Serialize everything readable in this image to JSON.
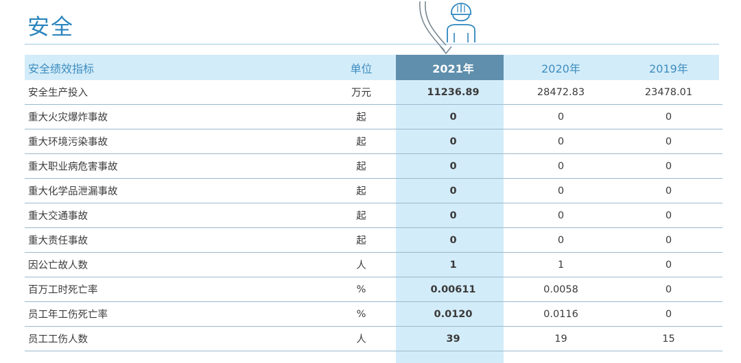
{
  "title": "安全",
  "table": {
    "headers": {
      "indicator": "安全绩效指标",
      "unit": "单位",
      "y2021": "2021年",
      "y2020": "2020年",
      "y2019": "2019年"
    },
    "rows": [
      {
        "name": "安全生产投入",
        "unit": "万元",
        "y2021": "11236.89",
        "y2020": "28472.83",
        "y2019": "23478.01"
      },
      {
        "name": "重大火灾爆炸事故",
        "unit": "起",
        "y2021": "0",
        "y2020": "0",
        "y2019": "0"
      },
      {
        "name": "重大环境污染事故",
        "unit": "起",
        "y2021": "0",
        "y2020": "0",
        "y2019": "0"
      },
      {
        "name": "重大职业病危害事故",
        "unit": "起",
        "y2021": "0",
        "y2020": "0",
        "y2019": "0"
      },
      {
        "name": "重大化学品泄漏事故",
        "unit": "起",
        "y2021": "0",
        "y2020": "0",
        "y2019": "0"
      },
      {
        "name": "重大交通事故",
        "unit": "起",
        "y2021": "0",
        "y2020": "0",
        "y2019": "0"
      },
      {
        "name": "重大责任事故",
        "unit": "起",
        "y2021": "0",
        "y2020": "0",
        "y2019": "0"
      },
      {
        "name": "因公亡故人数",
        "unit": "人",
        "y2021": "1",
        "y2020": "1",
        "y2019": "0"
      },
      {
        "name": "百万工时死亡率",
        "unit": "%",
        "y2021": "0.00611",
        "y2020": "0.0058",
        "y2019": "0"
      },
      {
        "name": "员工年工伤死亡率",
        "unit": "%",
        "y2021": "0.0120",
        "y2020": "0.0116",
        "y2019": "0"
      },
      {
        "name": "员工工伤人数",
        "unit": "人",
        "y2021": "39",
        "y2020": "19",
        "y2019": "15"
      }
    ]
  },
  "colors": {
    "accent": "#2d86bd",
    "header_band": "#d3ecf9",
    "highlight_header": "#5f8fac",
    "row_rule": "#9ab9cc"
  },
  "icons": {
    "decor": "worker-helmet-icon"
  }
}
